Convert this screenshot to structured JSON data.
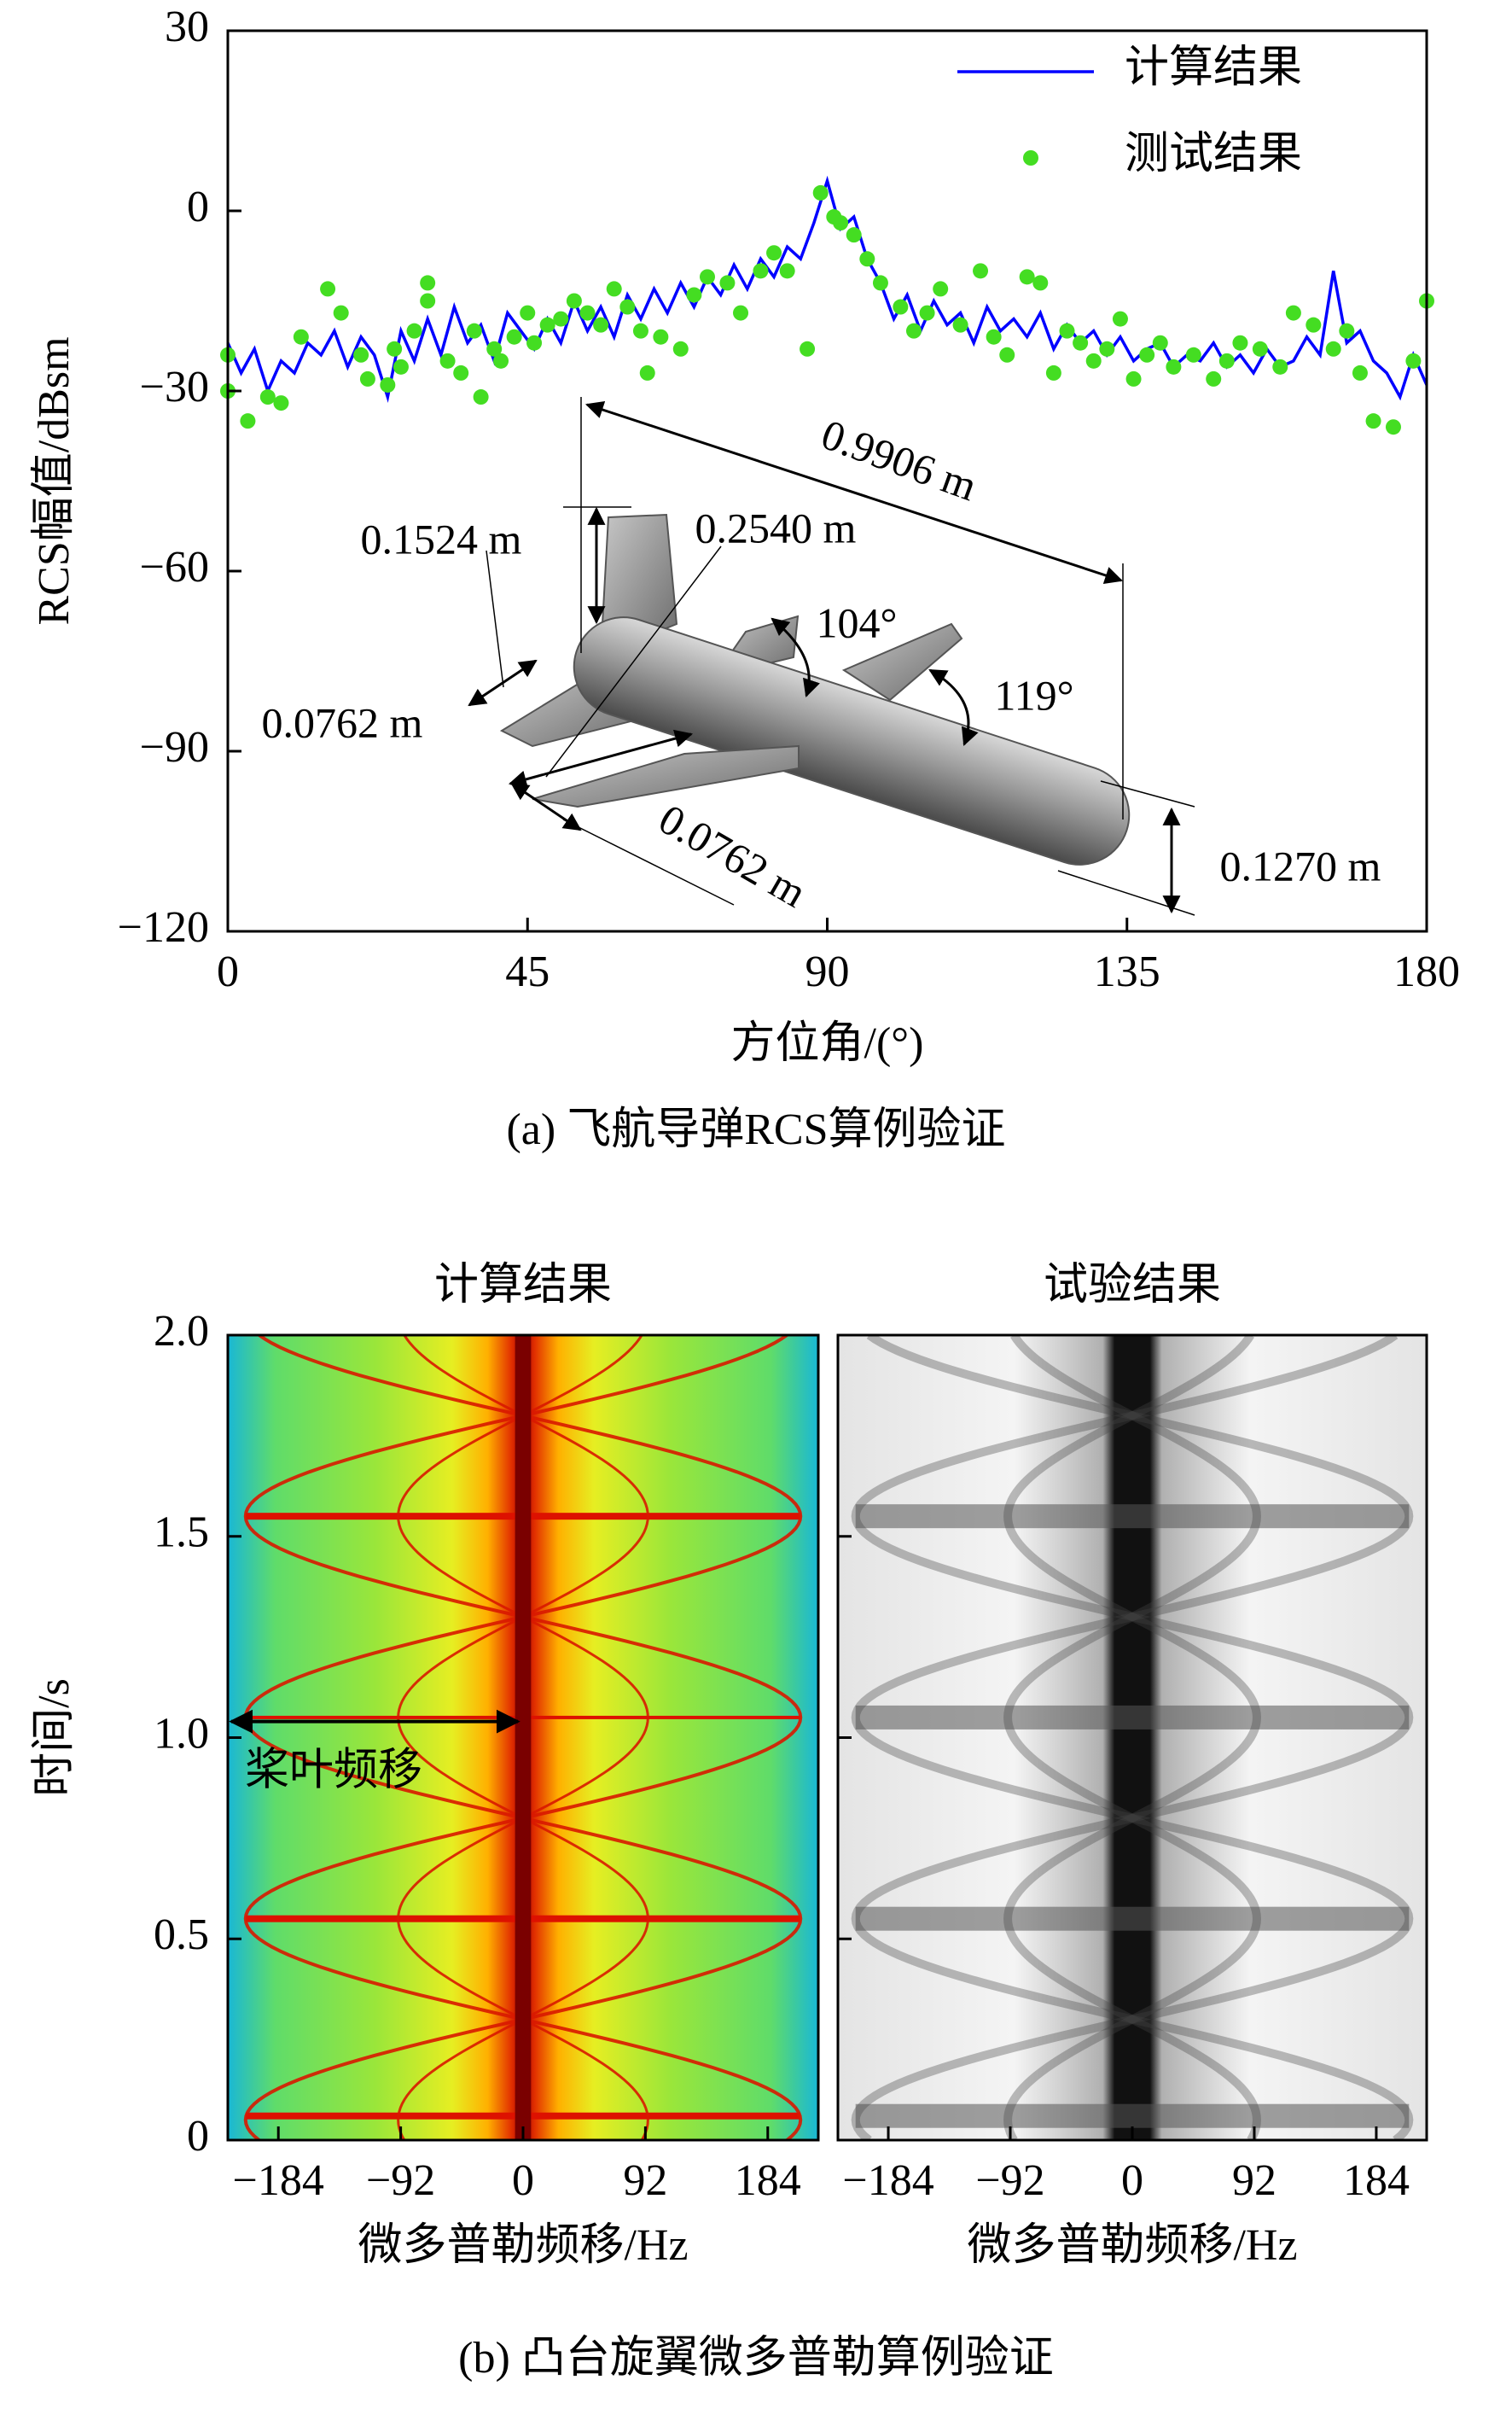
{
  "chart_data": [
    {
      "type": "line",
      "xlabel": "方位角/(°)",
      "ylabel": "RCS幅值/dBsm",
      "caption": "(a) 飞航导弹RCS算例验证",
      "xlim": [
        0,
        180
      ],
      "xticks": [
        0,
        45,
        90,
        135,
        180
      ],
      "ylim": [
        -120,
        30
      ],
      "yticks": [
        30,
        0,
        {
          "value": -30,
          "label": "−30"
        },
        {
          "value": -60,
          "label": "−60"
        },
        {
          "value": -90,
          "label": "−90"
        },
        {
          "value": -120,
          "label": "−120"
        }
      ],
      "legend": "upper right",
      "series": [
        {
          "name": "计算结果",
          "type": "line",
          "color": "#0000ff",
          "x": [
            0,
            2,
            4,
            6,
            8,
            10,
            12,
            14,
            16,
            18,
            20,
            22,
            24,
            26,
            28,
            30,
            32,
            34,
            36,
            38,
            40,
            42,
            44,
            46,
            48,
            50,
            52,
            54,
            56,
            58,
            60,
            62,
            64,
            66,
            68,
            70,
            72,
            74,
            76,
            78,
            80,
            82,
            84,
            86,
            88,
            90,
            92,
            94,
            96,
            98,
            100,
            102,
            104,
            106,
            108,
            110,
            112,
            114,
            116,
            118,
            120,
            122,
            124,
            126,
            128,
            130,
            132,
            134,
            136,
            138,
            140,
            142,
            144,
            146,
            148,
            150,
            152,
            154,
            156,
            158,
            160,
            162,
            164,
            166,
            168,
            170,
            172,
            174,
            176,
            178,
            180
          ],
          "values": [
            -22,
            -27,
            -23,
            -30,
            -25,
            -27,
            -22,
            -24,
            -20,
            -26,
            -21,
            -24,
            -31,
            -20,
            -25,
            -18,
            -24,
            -16,
            -22,
            -19,
            -25,
            -17,
            -20,
            -23,
            -18,
            -22,
            -15,
            -20,
            -16,
            -21,
            -14,
            -18,
            -13,
            -17,
            -12,
            -16,
            -11,
            -14,
            -9,
            -13,
            -8,
            -11,
            -6,
            -8,
            -2,
            5,
            -3,
            -1,
            -8,
            -12,
            -18,
            -14,
            -20,
            -15,
            -19,
            -17,
            -22,
            -16,
            -20,
            -18,
            -21,
            -17,
            -23,
            -19,
            -22,
            -20,
            -24,
            -21,
            -25,
            -23,
            -22,
            -26,
            -24,
            -25,
            -22,
            -26,
            -24,
            -27,
            -23,
            -26,
            -25,
            -21,
            -24,
            -10,
            -22,
            -20,
            -25,
            -27,
            -31,
            -24,
            -29
          ]
        },
        {
          "name": "测试结果",
          "type": "scatter",
          "color": "#44dd22",
          "x": [
            0,
            0,
            3,
            6,
            8,
            11,
            15,
            17,
            20,
            21,
            24,
            25,
            26,
            28,
            30,
            30,
            33,
            35,
            37,
            38,
            40,
            41,
            43,
            45,
            46,
            48,
            50,
            52,
            54,
            56,
            58,
            60,
            62,
            63,
            65,
            68,
            70,
            72,
            75,
            77,
            80,
            82,
            84,
            87,
            89,
            91,
            92,
            94,
            96,
            98,
            101,
            103,
            105,
            107,
            110,
            113,
            115,
            117,
            120,
            122,
            124,
            126,
            128,
            130,
            132,
            134,
            136,
            138,
            140,
            142,
            145,
            148,
            150,
            152,
            155,
            158,
            160,
            163,
            166,
            168,
            170,
            172,
            175,
            178,
            180
          ],
          "values": [
            -24,
            -30,
            -35,
            -31,
            -32,
            -21,
            -13,
            -17,
            -24,
            -28,
            -29,
            -23,
            -26,
            -20,
            -12,
            -15,
            -25,
            -27,
            -20,
            -31,
            -23,
            -25,
            -21,
            -17,
            -22,
            -19,
            -18,
            -15,
            -17,
            -19,
            -13,
            -16,
            -20,
            -27,
            -21,
            -23,
            -14,
            -11,
            -12,
            -17,
            -10,
            -7,
            -10,
            -23,
            3,
            -1,
            -2,
            -4,
            -8,
            -12,
            -16,
            -20,
            -17,
            -13,
            -19,
            -10,
            -21,
            -24,
            -11,
            -12,
            -27,
            -20,
            -22,
            -25,
            -23,
            -18,
            -28,
            -24,
            -22,
            -26,
            -24,
            -28,
            -25,
            -22,
            -23,
            -26,
            -17,
            -19,
            -23,
            -20,
            -27,
            -35,
            -36,
            -25,
            -15
          ]
        }
      ],
      "annotations": [
        "0.9906 m",
        "0.1524 m",
        "0.2540 m",
        "104°",
        "119°",
        "0.0762 m",
        "0.0762 m",
        "0.1270 m"
      ]
    },
    {
      "type": "heatmap",
      "title": "计算结果",
      "xlabel": "微多普勒频移/Hz",
      "ylabel": "时间/s",
      "xlim": [
        -222,
        222
      ],
      "xticks": [
        {
          "value": -184,
          "label": "−184"
        },
        {
          "value": -92,
          "label": "−92"
        },
        0,
        92,
        184
      ],
      "ylim": [
        0,
        2
      ],
      "yticks": [
        0,
        0.5,
        {
          "value": 1,
          "label": "1.0"
        },
        1.5,
        {
          "value": 2,
          "label": "2.0"
        }
      ],
      "annotation": "桨叶频移",
      "caption": "(b) 凸台旋翼微多普勒算例验证"
    },
    {
      "type": "heatmap",
      "title": "试验结果",
      "xlabel": "微多普勒频移/Hz",
      "xlim": [
        -222,
        222
      ],
      "xticks": [
        {
          "value": -184,
          "label": "−184"
        },
        {
          "value": -92,
          "label": "−92"
        },
        0,
        92,
        184
      ],
      "ylim": [
        0,
        2
      ]
    }
  ]
}
